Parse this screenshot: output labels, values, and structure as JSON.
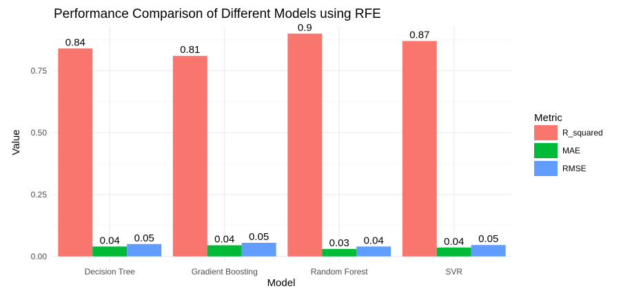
{
  "chart_data": {
    "type": "bar",
    "title": "Performance Comparison of Different Models using RFE",
    "xlabel": "Model",
    "ylabel": "Value",
    "categories": [
      "Decision Tree",
      "Gradient Boosting",
      "Random Forest",
      "SVR"
    ],
    "series": [
      {
        "name": "R_squared",
        "values": [
          0.84,
          0.81,
          0.9,
          0.87
        ],
        "labels": [
          "0.84",
          "0.81",
          "0.9",
          "0.87"
        ],
        "color": "#F8766D"
      },
      {
        "name": "MAE",
        "values": [
          0.04,
          0.045,
          0.03,
          0.036
        ],
        "labels": [
          "0.04",
          "0.04",
          "0.03",
          "0.04"
        ],
        "color": "#00BA38"
      },
      {
        "name": "RMSE",
        "values": [
          0.05,
          0.055,
          0.04,
          0.046
        ],
        "labels": [
          "0.05",
          "0.05",
          "0.04",
          "0.05"
        ],
        "color": "#619CFF"
      }
    ],
    "yticks": [
      "0.00",
      "0.25",
      "0.50",
      "0.75"
    ],
    "ylim": [
      -0.02,
      0.93
    ],
    "legend_title": "Metric",
    "legend_position": "right",
    "grid": true
  }
}
